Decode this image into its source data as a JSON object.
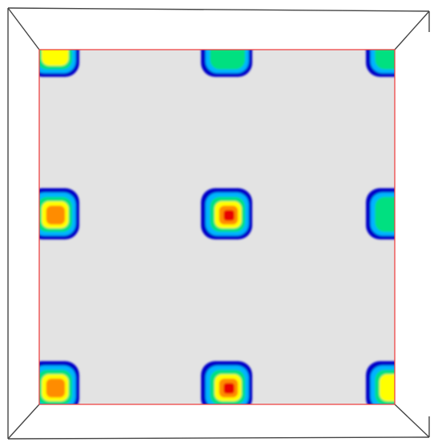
{
  "scene": {
    "kind": "3d-box-inner-view",
    "background_color": "#ffffff",
    "box_edge_color": "#444444",
    "panel_fill_color": "#e3e3e3",
    "panel_border_color": "#ee4444",
    "grid_rows": 3,
    "grid_cols": 3,
    "colormap": [
      "#0000c8",
      "#00b4ff",
      "#00e080",
      "#ffff00",
      "#ff8c00",
      "#e80000"
    ],
    "blobs": [
      {
        "row": 0,
        "col": 0,
        "peak": 0.6
      },
      {
        "row": 0,
        "col": 1,
        "peak": 0.55
      },
      {
        "row": 0,
        "col": 2,
        "peak": 0.5
      },
      {
        "row": 1,
        "col": 0,
        "peak": 0.8
      },
      {
        "row": 1,
        "col": 1,
        "peak": 1.0
      },
      {
        "row": 1,
        "col": 2,
        "peak": 0.55
      },
      {
        "row": 2,
        "col": 0,
        "peak": 0.85
      },
      {
        "row": 2,
        "col": 1,
        "peak": 1.0
      },
      {
        "row": 2,
        "col": 2,
        "peak": 0.65
      }
    ]
  }
}
